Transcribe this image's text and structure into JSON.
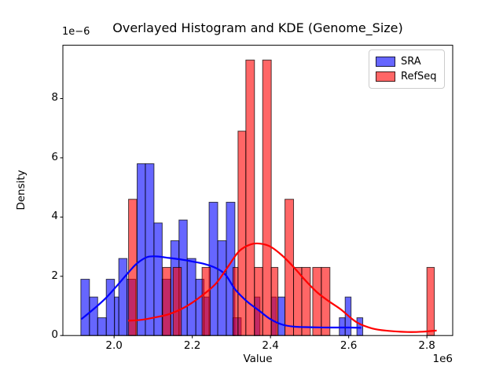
{
  "figure": {
    "title": "Overlayed Histogram and KDE (Genome_Size)",
    "xlabel": "Value",
    "ylabel": "Density",
    "y_offset_label": "1e−6",
    "x_offset_label": "1e6",
    "legend": {
      "entries": [
        {
          "label": "SRA",
          "color": "#0000ff"
        },
        {
          "label": "RefSeq",
          "color": "#ff0000"
        }
      ],
      "position": "upper right"
    }
  },
  "chart_data": {
    "type": "bar",
    "subtype": "overlaid-histograms-with-kde",
    "title": "Overlayed Histogram and KDE (Genome_Size)",
    "xlabel": "Value",
    "ylabel": "Density",
    "x_units_multiplier": "1e6",
    "y_units_multiplier": "1e-6",
    "xlim": [
      1.869,
      2.866
    ],
    "ylim": [
      0,
      9.8
    ],
    "x_ticks": [
      2.0,
      2.2,
      2.4,
      2.6,
      2.8
    ],
    "x_tick_labels": [
      "2.0",
      "2.2",
      "2.4",
      "2.6",
      "2.8"
    ],
    "y_ticks": [
      0,
      2,
      4,
      6,
      8
    ],
    "y_tick_labels": [
      "0",
      "2",
      "4",
      "6",
      "8"
    ],
    "grid": false,
    "alpha": 0.6,
    "bars_format": "[from_x_1e6, to_x_1e6, density_1e-6]",
    "series": [
      {
        "name": "SRA",
        "kind": "histogram",
        "color": "#0000ff",
        "bars": [
          [
            1.915,
            1.937,
            1.9
          ],
          [
            1.937,
            1.958,
            1.3
          ],
          [
            1.958,
            1.98,
            0.6
          ],
          [
            1.98,
            2.001,
            1.9
          ],
          [
            2.001,
            2.012,
            1.3
          ],
          [
            2.012,
            2.033,
            2.6
          ],
          [
            2.033,
            2.055,
            1.9
          ],
          [
            2.059,
            2.08,
            5.8
          ],
          [
            2.08,
            2.102,
            5.8
          ],
          [
            2.102,
            2.123,
            3.8
          ],
          [
            2.123,
            2.145,
            1.9
          ],
          [
            2.145,
            2.166,
            3.2
          ],
          [
            2.166,
            2.187,
            3.9
          ],
          [
            2.187,
            2.209,
            2.6
          ],
          [
            2.209,
            2.23,
            1.9
          ],
          [
            2.23,
            2.243,
            1.3
          ],
          [
            2.243,
            2.265,
            4.5
          ],
          [
            2.265,
            2.287,
            3.2
          ],
          [
            2.287,
            2.309,
            4.5
          ],
          [
            2.304,
            2.325,
            0.6
          ],
          [
            2.359,
            2.373,
            1.3
          ],
          [
            2.402,
            2.415,
            1.3
          ],
          [
            2.419,
            2.437,
            1.3
          ],
          [
            2.576,
            2.591,
            0.6
          ],
          [
            2.591,
            2.606,
            1.3
          ],
          [
            2.621,
            2.636,
            0.6
          ]
        ]
      },
      {
        "name": "RefSeq",
        "kind": "histogram",
        "color": "#ff0000",
        "bars": [
          [
            2.037,
            2.058,
            4.6
          ],
          [
            2.124,
            2.145,
            2.3
          ],
          [
            2.151,
            2.172,
            2.3
          ],
          [
            2.225,
            2.246,
            2.3
          ],
          [
            2.304,
            2.317,
            2.3
          ],
          [
            2.317,
            2.337,
            6.9
          ],
          [
            2.337,
            2.359,
            9.3
          ],
          [
            2.359,
            2.38,
            2.3
          ],
          [
            2.38,
            2.402,
            9.3
          ],
          [
            2.402,
            2.419,
            2.3
          ],
          [
            2.437,
            2.459,
            4.6
          ],
          [
            2.459,
            2.48,
            2.3
          ],
          [
            2.48,
            2.502,
            2.3
          ],
          [
            2.508,
            2.53,
            2.3
          ],
          [
            2.53,
            2.552,
            2.3
          ],
          [
            2.8,
            2.819,
            2.3
          ]
        ]
      },
      {
        "name": "SRA KDE",
        "kind": "kde-line",
        "color": "#0000ff",
        "points": [
          [
            1.916,
            0.55
          ],
          [
            1.95,
            0.92
          ],
          [
            1.98,
            1.28
          ],
          [
            2.01,
            1.72
          ],
          [
            2.04,
            2.18
          ],
          [
            2.06,
            2.45
          ],
          [
            2.085,
            2.65
          ],
          [
            2.11,
            2.67
          ],
          [
            2.14,
            2.62
          ],
          [
            2.17,
            2.57
          ],
          [
            2.2,
            2.5
          ],
          [
            2.23,
            2.42
          ],
          [
            2.26,
            2.28
          ],
          [
            2.285,
            2.05
          ],
          [
            2.31,
            1.55
          ],
          [
            2.34,
            1.15
          ],
          [
            2.37,
            0.85
          ],
          [
            2.4,
            0.55
          ],
          [
            2.43,
            0.37
          ],
          [
            2.46,
            0.3
          ],
          [
            2.5,
            0.28
          ],
          [
            2.55,
            0.27
          ],
          [
            2.6,
            0.27
          ],
          [
            2.632,
            0.26
          ]
        ]
      },
      {
        "name": "RefSeq KDE",
        "kind": "kde-line",
        "color": "#ff0000",
        "points": [
          [
            2.036,
            0.5
          ],
          [
            2.07,
            0.53
          ],
          [
            2.1,
            0.6
          ],
          [
            2.14,
            0.72
          ],
          [
            2.18,
            0.95
          ],
          [
            2.22,
            1.3
          ],
          [
            2.26,
            1.75
          ],
          [
            2.29,
            2.3
          ],
          [
            2.32,
            2.85
          ],
          [
            2.35,
            3.08
          ],
          [
            2.375,
            3.1
          ],
          [
            2.4,
            3.0
          ],
          [
            2.43,
            2.7
          ],
          [
            2.46,
            2.3
          ],
          [
            2.49,
            1.85
          ],
          [
            2.52,
            1.45
          ],
          [
            2.55,
            1.15
          ],
          [
            2.58,
            0.88
          ],
          [
            2.62,
            0.45
          ],
          [
            2.66,
            0.24
          ],
          [
            2.7,
            0.16
          ],
          [
            2.75,
            0.12
          ],
          [
            2.79,
            0.13
          ],
          [
            2.825,
            0.17
          ]
        ]
      }
    ]
  }
}
